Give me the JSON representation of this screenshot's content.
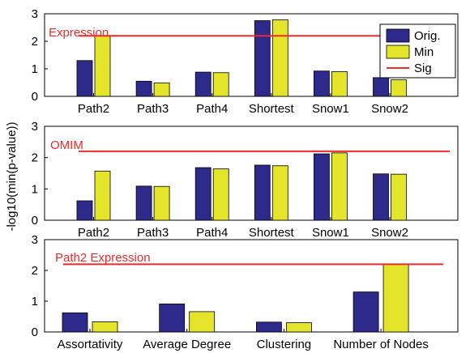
{
  "figure": {
    "ylabel": "-log10(min(p-value))"
  },
  "legend": {
    "items": [
      {
        "label": "Orig.",
        "color": "#2e2a8c",
        "kind": "bar"
      },
      {
        "label": "Min",
        "color": "#e4e42a",
        "kind": "bar"
      },
      {
        "label": "Sig",
        "color": "#ee2b2b",
        "kind": "line"
      }
    ]
  },
  "colors": {
    "orig": "#2e2a8c",
    "min": "#e4e42a",
    "sig": "#ee2b2b",
    "axis": "#000000"
  },
  "chart_data": [
    {
      "type": "bar",
      "annotation": "Expression",
      "categories": [
        "Path2",
        "Path3",
        "Path4",
        "Shortest",
        "Snow1",
        "Snow2"
      ],
      "series": [
        {
          "name": "Orig.",
          "values": [
            1.3,
            0.55,
            0.88,
            2.75,
            0.92,
            0.68
          ]
        },
        {
          "name": "Min",
          "values": [
            2.21,
            0.49,
            0.86,
            2.78,
            0.9,
            0.6
          ]
        }
      ],
      "threshold": {
        "name": "Sig",
        "value": 2.2
      },
      "ylim": [
        0,
        3
      ],
      "yticks": [
        0,
        1,
        2,
        3
      ],
      "grid": false,
      "legend": "top-right"
    },
    {
      "type": "bar",
      "annotation": "OMIM",
      "categories": [
        "Path2",
        "Path3",
        "Path4",
        "Shortest",
        "Snow1",
        "Snow2"
      ],
      "series": [
        {
          "name": "Orig.",
          "values": [
            0.62,
            1.09,
            1.68,
            1.76,
            2.12,
            1.48
          ]
        },
        {
          "name": "Min",
          "values": [
            1.57,
            1.08,
            1.64,
            1.74,
            2.15,
            1.47
          ]
        }
      ],
      "threshold": {
        "name": "Sig",
        "value": 2.2
      },
      "ylim": [
        0,
        3
      ],
      "yticks": [
        0,
        1,
        2,
        3
      ],
      "grid": false
    },
    {
      "type": "bar",
      "annotation": "Path2 Expression",
      "categories": [
        "Assortativity",
        "Average Degree",
        "Clustering",
        "Number of Nodes"
      ],
      "series": [
        {
          "name": "Orig.",
          "values": [
            0.62,
            0.91,
            0.32,
            1.3
          ]
        },
        {
          "name": "Min",
          "values": [
            0.33,
            0.66,
            0.3,
            2.2
          ]
        }
      ],
      "threshold": {
        "name": "Sig",
        "value": 2.2
      },
      "ylim": [
        0,
        3
      ],
      "yticks": [
        0,
        1,
        2,
        3
      ],
      "grid": false
    }
  ]
}
